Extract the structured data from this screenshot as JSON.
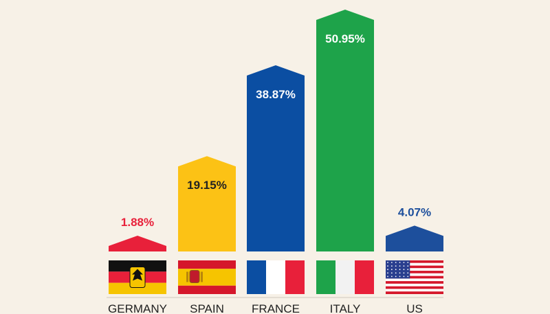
{
  "chart_data": {
    "type": "bar",
    "categories": [
      "GERMANY",
      "SPAIN",
      "FRANCE",
      "ITALY",
      "US"
    ],
    "values": [
      1.88,
      19.15,
      38.87,
      50.95,
      4.07
    ],
    "value_labels": [
      "1.88%",
      "19.15%",
      "38.87%",
      "50.95%",
      "4.07%"
    ],
    "bar_colors": [
      "#e8203a",
      "#fcc215",
      "#0b4ea2",
      "#1ea34a",
      "#1d4f9c"
    ],
    "label_colors": [
      "#e8203a",
      "#222222",
      "#ffffff",
      "#ffffff",
      "#1d4f9c"
    ],
    "label_position": [
      "above",
      "inside",
      "inside",
      "inside",
      "above"
    ],
    "flags": [
      "germany-flag",
      "spain-flag",
      "france-flag",
      "italy-flag",
      "us-flag"
    ],
    "ylim": [
      0,
      50.95
    ],
    "grid": false,
    "title": "",
    "xlabel": "",
    "ylabel": ""
  }
}
